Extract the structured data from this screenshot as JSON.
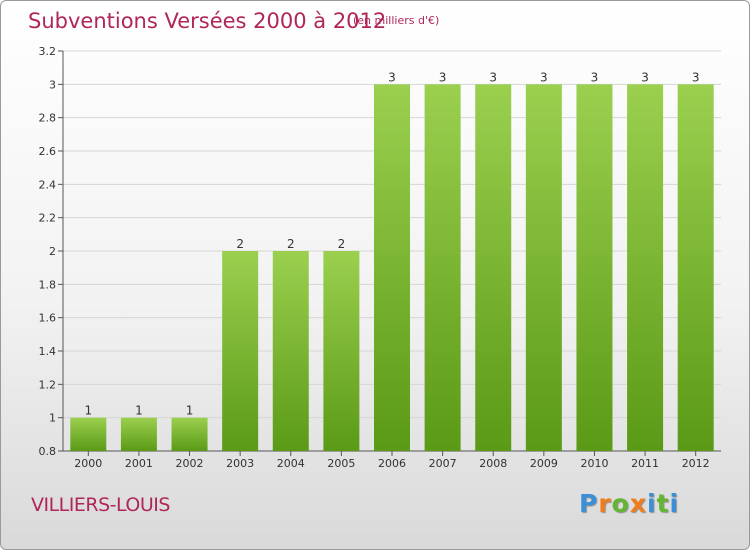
{
  "title": "Subventions Versées 2000 à 2012",
  "subtitle": "(en milliers d'€)",
  "place": "VILLIERS-LOUIS",
  "logo": {
    "text": "Proxiti",
    "letters": [
      "P",
      "r",
      "o",
      "x",
      "i",
      "t",
      "i"
    ],
    "colors": [
      "#3b8fd6",
      "#f07d1a",
      "#63b631",
      "#f07d1a",
      "#3b8fd6",
      "#63b631",
      "#3b8fd6"
    ]
  },
  "colors": {
    "title": "#b0265a",
    "bar_top": "#9bd04f",
    "bar_bottom": "#5a9a16",
    "axis": "#555555",
    "grid": "#d6d6d6"
  },
  "chart_data": {
    "type": "bar",
    "categories": [
      "2000",
      "2001",
      "2002",
      "2003",
      "2004",
      "2005",
      "2006",
      "2007",
      "2008",
      "2009",
      "2010",
      "2011",
      "2012"
    ],
    "values": [
      1,
      1,
      1,
      2,
      2,
      2,
      3,
      3,
      3,
      3,
      3,
      3,
      3
    ],
    "data_labels": [
      "1",
      "1",
      "1",
      "2",
      "2",
      "2",
      "3",
      "3",
      "3",
      "3",
      "3",
      "3",
      "3"
    ],
    "yticks": [
      "0.8",
      "1",
      "1.2",
      "1.4",
      "1.6",
      "1.8",
      "2",
      "2.2",
      "2.4",
      "2.6",
      "2.8",
      "3",
      "3.2"
    ],
    "ytick_values": [
      0.8,
      1,
      1.2,
      1.4,
      1.6,
      1.8,
      2,
      2.2,
      2.4,
      2.6,
      2.8,
      3,
      3.2
    ],
    "ylim": [
      0.8,
      3.2
    ],
    "grid": true,
    "legend": "none"
  }
}
